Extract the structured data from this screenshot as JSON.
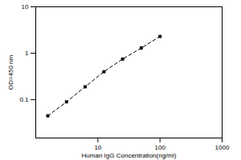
{
  "chart_data": {
    "type": "scatter",
    "x_label": "Human IgG Concentration(ng/ml)",
    "y_label": "OD=450 nm",
    "x": [
      1.5625,
      3.125,
      6.25,
      12.5,
      25,
      50,
      100
    ],
    "values": [
      0.045,
      0.09,
      0.19,
      0.4,
      0.75,
      1.3,
      2.3
    ],
    "color": "#000000",
    "marker": "square",
    "line_style": "dashed",
    "log": true,
    "grid": false,
    "xlim": [
      1,
      1000
    ],
    "xticks": [
      10,
      100,
      1000
    ],
    "ylim": [
      0.015,
      10
    ],
    "yticks": [
      0.1,
      1,
      10
    ]
  }
}
